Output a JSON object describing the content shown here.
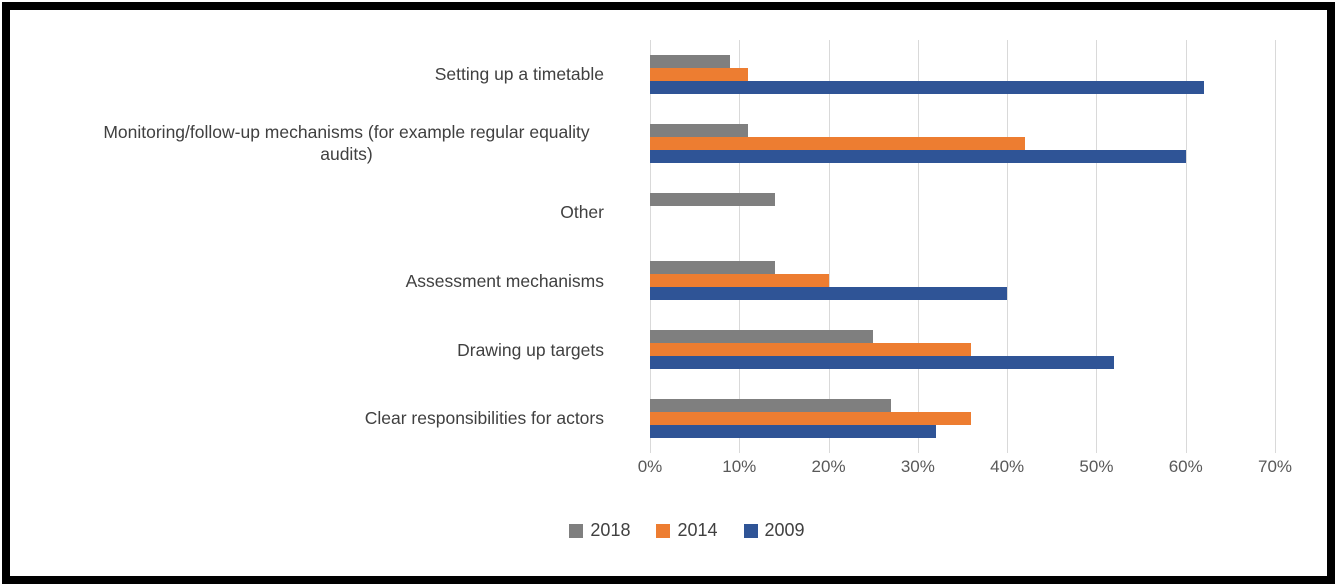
{
  "chart_data": {
    "type": "bar",
    "orientation": "horizontal",
    "categories": [
      "Setting up a timetable",
      "Monitoring/follow-up mechanisms (for example regular equality audits)",
      "Other",
      "Assessment mechanisms",
      "Drawing up targets",
      "Clear responsibilities for actors"
    ],
    "series": [
      {
        "name": "2018",
        "color": "#7F7F7F",
        "values": [
          9,
          11,
          14,
          14,
          25,
          27
        ]
      },
      {
        "name": "2014",
        "color": "#ED7D31",
        "values": [
          11,
          42,
          0,
          20,
          36,
          36
        ]
      },
      {
        "name": "2009",
        "color": "#2F5496",
        "values": [
          62,
          60,
          0,
          40,
          52,
          32
        ]
      }
    ],
    "x_tick_labels": [
      "0%",
      "10%",
      "20%",
      "30%",
      "40%",
      "50%",
      "60%",
      "70%"
    ],
    "xlim": [
      0,
      70
    ],
    "grid": true,
    "legend_position": "bottom",
    "bar_unit": "percent"
  },
  "styles": {
    "background": "#FFFFFF",
    "frame_border_color": "#000000",
    "gridline_color": "#D9D9D9",
    "axis_text_color": "#595959",
    "label_text_color": "#404040"
  }
}
